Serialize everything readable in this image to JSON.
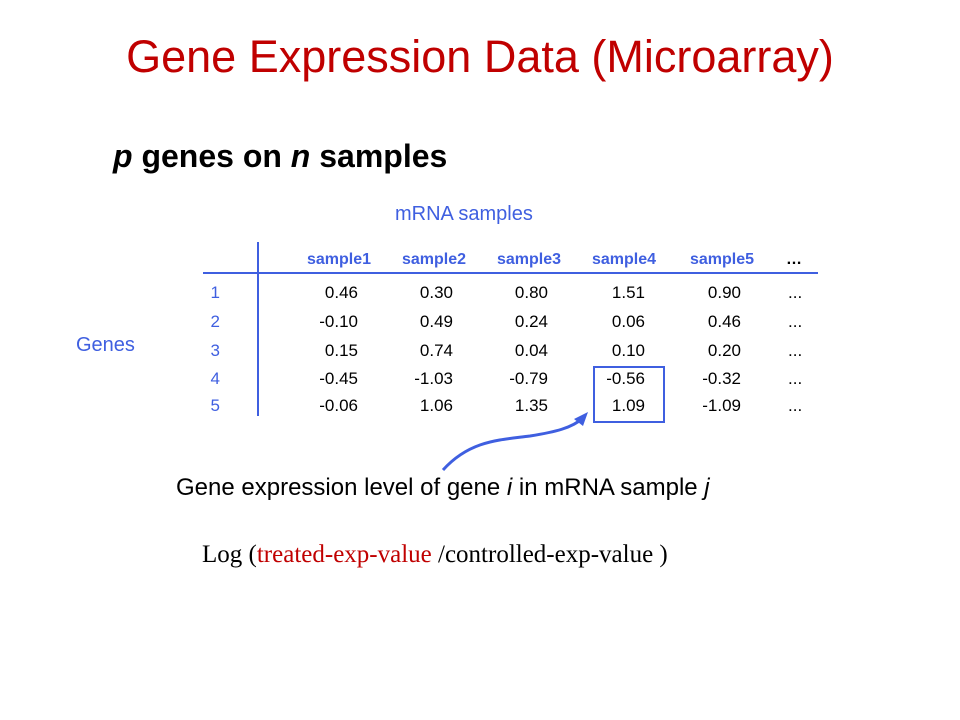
{
  "title": "Gene Expression Data (Microarray)",
  "subtitle": {
    "p": "p",
    "mid1": " genes on ",
    "n": "n",
    "mid2": " samples"
  },
  "columns_caption": "mRNA samples",
  "rows_caption": "Genes",
  "table": {
    "headers": [
      "sample1",
      "sample2",
      "sample3",
      "sample4",
      "sample5"
    ],
    "header_ellipsis": "…",
    "row_ellipsis": "...",
    "rows": [
      {
        "label": "1",
        "values": [
          "0.46",
          "0.30",
          "0.80",
          "1.51",
          "0.90"
        ]
      },
      {
        "label": "2",
        "values": [
          "-0.10",
          "0.49",
          "0.24",
          "0.06",
          "0.46"
        ]
      },
      {
        "label": "3",
        "values": [
          "0.15",
          "0.74",
          "0.04",
          "0.10",
          "0.20"
        ]
      },
      {
        "label": "4",
        "values": [
          "-0.45",
          "-1.03",
          "-0.79",
          "-0.56",
          "-0.32"
        ]
      },
      {
        "label": "5",
        "values": [
          "-0.06",
          "1.06",
          "1.35",
          "1.09",
          "-1.09"
        ]
      }
    ]
  },
  "note": {
    "part1": "Gene expression level of gene ",
    "i": "i",
    "part2": " in mRNA sample ",
    "j": "j"
  },
  "formula": {
    "open": "Log (",
    "treated": "treated-exp-value",
    "rest": " /controlled-exp-value )"
  },
  "colors": {
    "title": "#c00000",
    "accent": "#3f5fe0",
    "highlight_box": "#3f5fe0"
  }
}
